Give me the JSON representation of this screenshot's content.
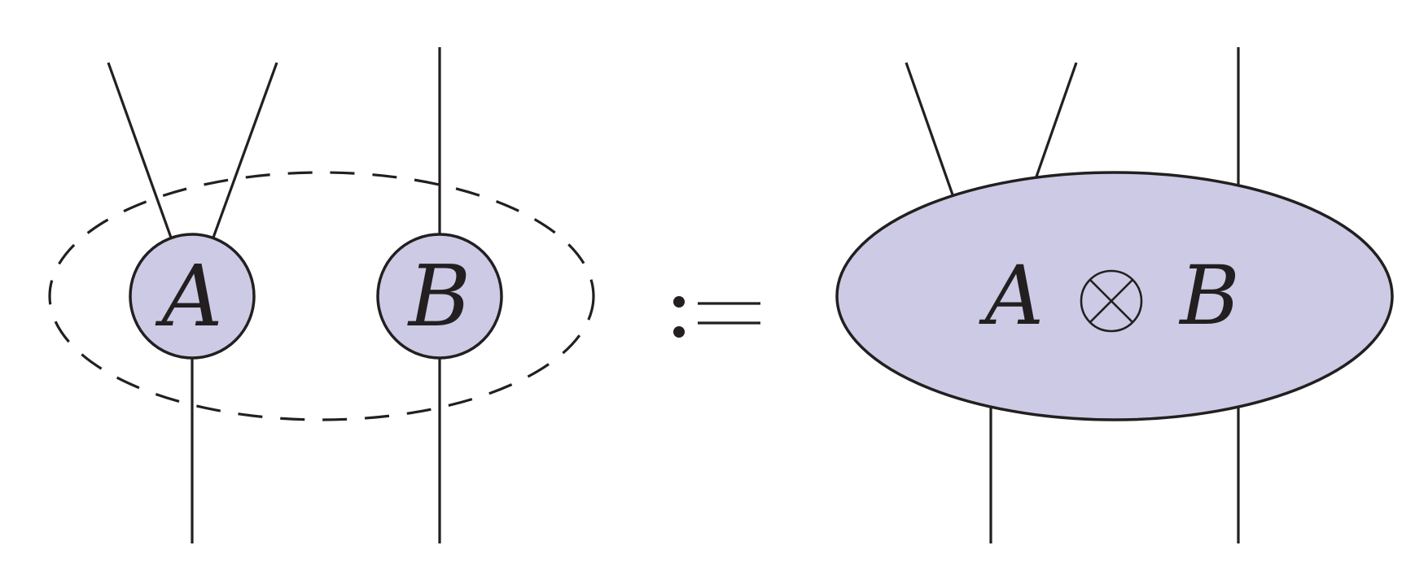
{
  "colors": {
    "node_fill": "#cdcae5",
    "stroke": "#231f20",
    "background": "#ffffff"
  },
  "left": {
    "tensor_a": {
      "label": "A"
    },
    "tensor_b": {
      "label": "B"
    },
    "grouping": "dashed-ellipse"
  },
  "definition_symbol": ":=",
  "right": {
    "combined": {
      "label_left": "A",
      "operator": "⊗",
      "label_right": "B",
      "operator_icon": "circled-times-icon"
    }
  }
}
